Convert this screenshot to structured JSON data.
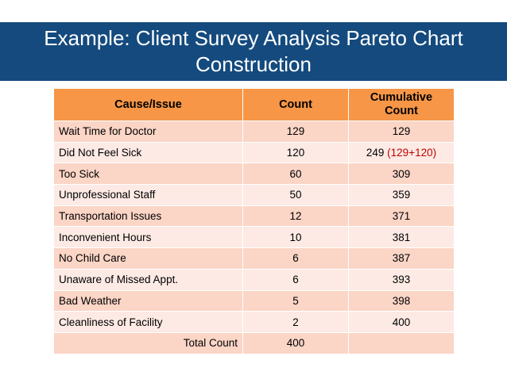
{
  "header": {
    "title": "Example: Client Survey Analysis Pareto Chart Construction"
  },
  "table": {
    "columns": [
      "Cause/Issue",
      "Count",
      "Cumulative Count"
    ],
    "rows": [
      {
        "cause": "Wait Time for Doctor",
        "count": 129,
        "cumulative": 129
      },
      {
        "cause": "Did Not Feel Sick",
        "count": 120,
        "cumulative": 249,
        "cumulative_note": "(129+120)"
      },
      {
        "cause": "Too Sick",
        "count": 60,
        "cumulative": 309
      },
      {
        "cause": "Unprofessional Staff",
        "count": 50,
        "cumulative": 359
      },
      {
        "cause": "Transportation Issues",
        "count": 12,
        "cumulative": 371
      },
      {
        "cause": "Inconvenient Hours",
        "count": 10,
        "cumulative": 381
      },
      {
        "cause": "No Child Care",
        "count": 6,
        "cumulative": 387
      },
      {
        "cause": "Unaware of Missed Appt.",
        "count": 6,
        "cumulative": 393
      },
      {
        "cause": "Bad Weather",
        "count": 5,
        "cumulative": 398
      },
      {
        "cause": "Cleanliness of Facility",
        "count": 2,
        "cumulative": 400
      }
    ],
    "total": {
      "label": "Total Count",
      "count": 400
    }
  }
}
